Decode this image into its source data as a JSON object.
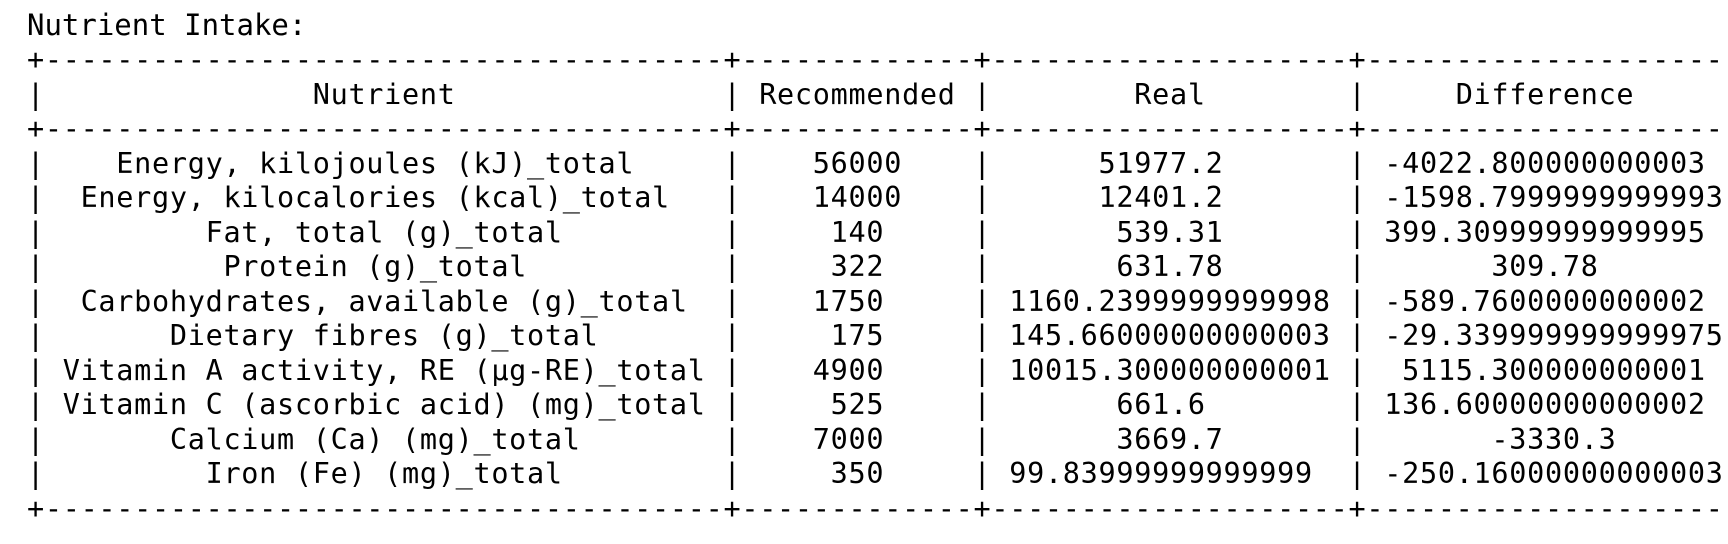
{
  "title": "Nutrient Intake:",
  "table": {
    "columns": [
      {
        "key": "nutrient",
        "label": "Nutrient",
        "width": 38
      },
      {
        "key": "recommended",
        "label": "Recommended",
        "width": 13
      },
      {
        "key": "real",
        "label": "Real",
        "width": 20
      },
      {
        "key": "difference",
        "label": "Difference",
        "width": 21
      }
    ],
    "rows": [
      {
        "nutrient": "Energy, kilojoules (kJ)_total",
        "recommended": "56000",
        "real": "51977.2",
        "difference": "-4022.800000000003"
      },
      {
        "nutrient": "Energy, kilocalories (kcal)_total",
        "recommended": "14000",
        "real": "12401.2",
        "difference": "-1598.7999999999993"
      },
      {
        "nutrient": "Fat, total (g)_total",
        "recommended": "140",
        "real": "539.31",
        "difference": "399.30999999999995"
      },
      {
        "nutrient": "Protein (g)_total",
        "recommended": "322",
        "real": "631.78",
        "difference": "309.78"
      },
      {
        "nutrient": "Carbohydrates, available (g)_total",
        "recommended": "1750",
        "real": "1160.2399999999998",
        "difference": "-589.7600000000002"
      },
      {
        "nutrient": "Dietary fibres (g)_total",
        "recommended": "175",
        "real": "145.66000000000003",
        "difference": "-29.339999999999975"
      },
      {
        "nutrient": "Vitamin A activity, RE (µg-RE)_total",
        "recommended": "4900",
        "real": "10015.300000000001",
        "difference": "5115.300000000001"
      },
      {
        "nutrient": "Vitamin C (ascorbic acid) (mg)_total",
        "recommended": "525",
        "real": "661.6",
        "difference": "136.60000000000002"
      },
      {
        "nutrient": "Calcium (Ca) (mg)_total",
        "recommended": "7000",
        "real": "3669.7",
        "difference": "-3330.3"
      },
      {
        "nutrient": "Iron (Fe) (mg)_total",
        "recommended": "350",
        "real": "99.83999999999999",
        "difference": "-250.16000000000003"
      }
    ]
  }
}
